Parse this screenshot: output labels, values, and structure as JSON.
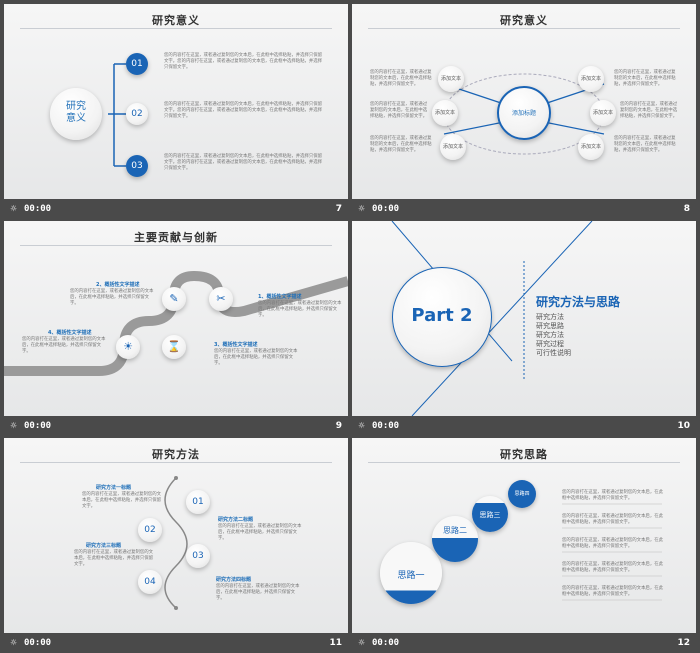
{
  "slides": [
    {
      "num": "7",
      "title": "研究意义",
      "circle": "研究\n意义",
      "items": [
        {
          "n": "01"
        },
        {
          "n": "02"
        },
        {
          "n": "03"
        }
      ],
      "text": "您的内容打在这里，或者通过复制您的文本后，在此框中选择粘贴，并选择只保留文字。您的内容打在这里，或者通过复制您的文本后，在此框中选择粘贴，并选择只保留文字。"
    },
    {
      "num": "8",
      "title": "研究意义",
      "center": "添加标题",
      "node": "添加文本",
      "text": "您的内容打在这里，或者通过复制您的文本后，在此框中选择粘贴，并选择只保留文字。"
    },
    {
      "num": "9",
      "title": "主要贡献与创新",
      "labels": [
        "1、概括性文字描述",
        "2、概括性文字描述",
        "3、概括性文字描述",
        "4、概括性文字描述"
      ],
      "text": "您的内容打在这里，或者通过复制您的文本后，在此框中选择粘贴，并选择只保留文字。"
    },
    {
      "num": "10",
      "part": "Part 2",
      "heading": "研究方法与思路",
      "list": [
        "研究方法",
        "研究思路",
        "研究方法",
        "研究过程",
        "可行性说明"
      ]
    },
    {
      "num": "11",
      "title": "研究方法",
      "labels": [
        "研究方法一标题",
        "研究方法二标题",
        "研究方法三标题",
        "研究方法四标题"
      ],
      "nums": [
        "01",
        "02",
        "03",
        "04"
      ],
      "text": "您的内容打在这里，或者通过复制您的文本后，在此框中选择粘贴，并选择只保留文字。"
    },
    {
      "num": "12",
      "title": "研究思路",
      "steps": [
        "思路一",
        "思路二",
        "思路三",
        "思路四"
      ],
      "text": "您的内容打在这里，或者通过复制您的文本后，在此框中选择粘贴，并选择只保留文字。"
    }
  ],
  "time": "00:00"
}
